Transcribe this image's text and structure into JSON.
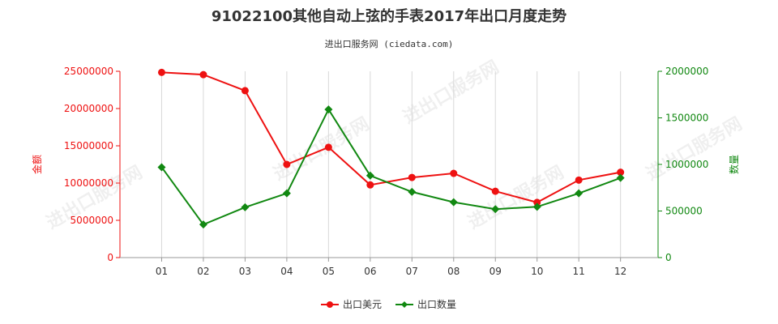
{
  "chart_data": {
    "type": "line",
    "title": "91022100其他自动上弦的手表2017年出口月度走势",
    "subtitle": "进出口服务网 (ciedata.com)",
    "categories": [
      "01",
      "02",
      "03",
      "04",
      "05",
      "06",
      "07",
      "08",
      "09",
      "10",
      "11",
      "12"
    ],
    "series": [
      {
        "name": "出口美元",
        "axis": "left",
        "color": "#ee1111",
        "marker": "circle",
        "values": [
          24850000,
          24550000,
          22400000,
          12500000,
          14800000,
          9750000,
          10750000,
          11300000,
          8900000,
          7400000,
          10400000,
          11450000
        ]
      },
      {
        "name": "出口数量",
        "axis": "right",
        "color": "#118811",
        "marker": "diamond",
        "values": [
          970000,
          355000,
          540000,
          690000,
          1590000,
          880000,
          705000,
          595000,
          520000,
          545000,
          690000,
          855000
        ]
      }
    ],
    "yleft": {
      "label": "金额",
      "color": "#ee1111",
      "min": 0,
      "max": 25000000,
      "ticks": [
        "0",
        "5000000",
        "10000000",
        "15000000",
        "20000000",
        "25000000"
      ]
    },
    "yright": {
      "label": "数量",
      "color": "#118811",
      "min": 0,
      "max": 2000000,
      "ticks": [
        "0",
        "500000",
        "1000000",
        "1500000",
        "2000000"
      ]
    },
    "grid": "vertical",
    "legend_position": "bottom-center"
  },
  "watermark_text": "进出口服务网"
}
